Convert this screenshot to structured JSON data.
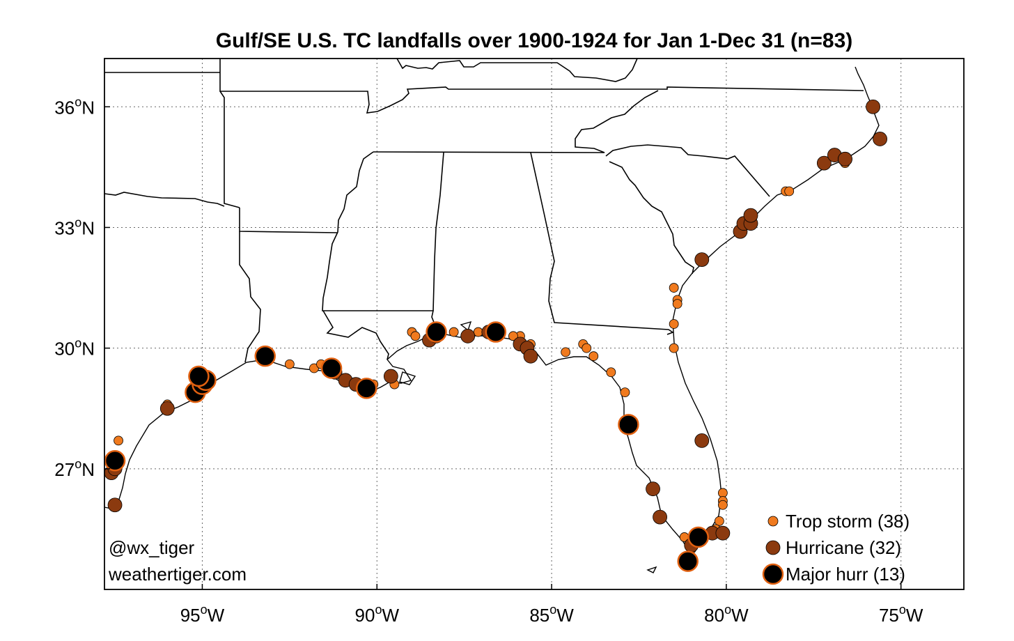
{
  "title": "Gulf/SE U.S. TC landfalls over 1900-1924 for Jan 1-Dec 31 (n=83)",
  "credits": [
    "@wx_tiger",
    "weathertiger.com"
  ],
  "colors": {
    "trop_storm_fill": "#F07A1E",
    "hurricane_fill": "#8B3A0F",
    "major_fill": "#000000",
    "marker_edge": "#E06010",
    "coast": "#000000",
    "grid": "#666666"
  },
  "chart_data": {
    "type": "scatter",
    "title": "Gulf/SE U.S. TC landfalls over 1900-1924 for Jan 1-Dec 31 (n=83)",
    "xlim": [
      -97.8,
      -73.2
    ],
    "ylim": [
      24.0,
      37.2
    ],
    "grid": true,
    "legend_position": "bottom-right",
    "x_ticks": [
      {
        "value": -95,
        "label": "95",
        "unit": "W"
      },
      {
        "value": -90,
        "label": "90",
        "unit": "W"
      },
      {
        "value": -85,
        "label": "85",
        "unit": "W"
      },
      {
        "value": -80,
        "label": "80",
        "unit": "W"
      },
      {
        "value": -75,
        "label": "75",
        "unit": "W"
      }
    ],
    "y_ticks": [
      {
        "value": 27,
        "label": "27",
        "unit": "N"
      },
      {
        "value": 30,
        "label": "30",
        "unit": "N"
      },
      {
        "value": 33,
        "label": "33",
        "unit": "N"
      },
      {
        "value": 36,
        "label": "36",
        "unit": "N"
      }
    ],
    "series": [
      {
        "name": "Trop storm (38)",
        "category": "trop_storm",
        "points": [
          [
            -97.4,
            27.7
          ],
          [
            -96.0,
            28.6
          ],
          [
            -92.5,
            29.6
          ],
          [
            -91.8,
            29.5
          ],
          [
            -91.6,
            29.6
          ],
          [
            -89.5,
            29.1
          ],
          [
            -89.0,
            30.4
          ],
          [
            -87.8,
            30.4
          ],
          [
            -87.4,
            30.3
          ],
          [
            -86.8,
            30.4
          ],
          [
            -85.9,
            30.3
          ],
          [
            -85.6,
            30.1
          ],
          [
            -84.6,
            29.9
          ],
          [
            -84.1,
            30.1
          ],
          [
            -84.0,
            30.0
          ],
          [
            -83.8,
            29.8
          ],
          [
            -83.3,
            29.4
          ],
          [
            -82.9,
            28.9
          ],
          [
            -81.5,
            31.5
          ],
          [
            -81.4,
            31.2
          ],
          [
            -81.4,
            31.1
          ],
          [
            -81.5,
            30.6
          ],
          [
            -81.5,
            30.0
          ],
          [
            -80.1,
            26.4
          ],
          [
            -80.1,
            26.2
          ],
          [
            -80.1,
            26.1
          ],
          [
            -80.2,
            25.7
          ],
          [
            -80.3,
            25.5
          ],
          [
            -81.2,
            25.3
          ],
          [
            -81.0,
            25.0
          ],
          [
            -79.3,
            33.2
          ],
          [
            -78.3,
            33.9
          ],
          [
            -78.2,
            33.9
          ],
          [
            -76.6,
            34.6
          ],
          [
            -88.9,
            30.3
          ],
          [
            -90.1,
            29.1
          ],
          [
            -86.1,
            30.3
          ],
          [
            -87.1,
            30.4
          ]
        ]
      },
      {
        "name": "Hurricane (32)",
        "category": "hurricane",
        "points": [
          [
            -97.5,
            26.1
          ],
          [
            -97.6,
            26.9
          ],
          [
            -97.5,
            27.0
          ],
          [
            -96.0,
            28.5
          ],
          [
            -91.2,
            29.4
          ],
          [
            -90.9,
            29.2
          ],
          [
            -90.6,
            29.1
          ],
          [
            -89.6,
            29.3
          ],
          [
            -88.5,
            30.2
          ],
          [
            -88.3,
            30.3
          ],
          [
            -87.4,
            30.3
          ],
          [
            -86.8,
            30.4
          ],
          [
            -85.9,
            30.1
          ],
          [
            -85.7,
            30.0
          ],
          [
            -85.6,
            29.8
          ],
          [
            -82.1,
            26.5
          ],
          [
            -81.9,
            25.8
          ],
          [
            -80.7,
            27.7
          ],
          [
            -80.4,
            25.4
          ],
          [
            -80.1,
            25.4
          ],
          [
            -81.0,
            25.1
          ],
          [
            -79.6,
            32.9
          ],
          [
            -79.5,
            33.1
          ],
          [
            -79.3,
            33.1
          ],
          [
            -79.3,
            33.3
          ],
          [
            -80.7,
            32.2
          ],
          [
            -77.2,
            34.6
          ],
          [
            -76.9,
            34.8
          ],
          [
            -76.6,
            34.7
          ],
          [
            -76.6,
            34.7
          ],
          [
            -75.8,
            36.0
          ],
          [
            -75.6,
            35.2
          ]
        ]
      },
      {
        "name": "Major hurr (13)",
        "category": "major",
        "points": [
          [
            -97.5,
            27.2
          ],
          [
            -95.2,
            28.9
          ],
          [
            -95.0,
            29.1
          ],
          [
            -94.9,
            29.2
          ],
          [
            -93.2,
            29.8
          ],
          [
            -91.3,
            29.5
          ],
          [
            -90.3,
            29.0
          ],
          [
            -88.3,
            30.4
          ],
          [
            -86.6,
            30.4
          ],
          [
            -82.8,
            28.1
          ],
          [
            -80.8,
            25.3
          ],
          [
            -81.1,
            24.7
          ],
          [
            -95.1,
            29.3
          ]
        ]
      }
    ]
  }
}
